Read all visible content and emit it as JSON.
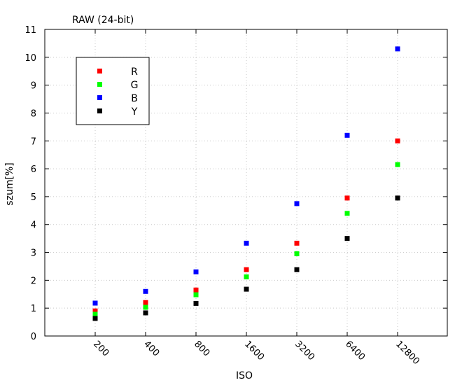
{
  "chart_data": {
    "type": "scatter",
    "title": "RAW (24-bit)",
    "xlabel": "ISO",
    "ylabel": "szum[%]",
    "categories": [
      "200",
      "400",
      "800",
      "1600",
      "3200",
      "6400",
      "12800"
    ],
    "ylim": [
      0,
      11
    ],
    "yticks": [
      "0",
      "1",
      "2",
      "3",
      "4",
      "5",
      "6",
      "7",
      "8",
      "9",
      "10",
      "11"
    ],
    "grid": true,
    "legend_position": "top-left",
    "series": [
      {
        "name": "R",
        "color": "#ff0000",
        "values": [
          0.9,
          1.2,
          1.65,
          2.38,
          3.33,
          4.95,
          7.0
        ]
      },
      {
        "name": "G",
        "color": "#00ff00",
        "values": [
          0.78,
          1.03,
          1.48,
          2.12,
          2.95,
          4.4,
          6.15
        ]
      },
      {
        "name": "B",
        "color": "#0000ff",
        "values": [
          1.18,
          1.6,
          2.3,
          3.33,
          4.75,
          7.2,
          10.3
        ]
      },
      {
        "name": "Y",
        "color": "#000000",
        "values": [
          0.63,
          0.83,
          1.17,
          1.68,
          2.38,
          3.5,
          4.95
        ]
      }
    ]
  }
}
